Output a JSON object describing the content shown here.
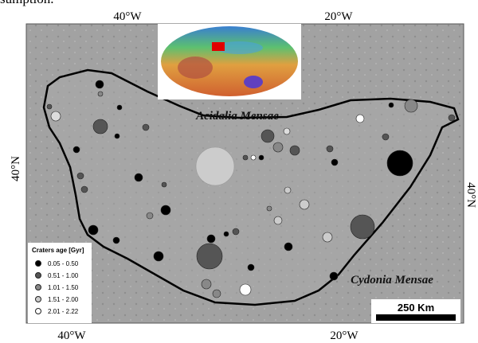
{
  "page_text": "sumption.",
  "map": {
    "axis_labels": {
      "top": [
        "40°W",
        "20°W"
      ],
      "bottom": [
        "40°W",
        "20°W"
      ],
      "left": "40°N",
      "right": "40°N"
    },
    "regions": [
      "Acidalia Mensae",
      "Cydonia Mensae"
    ],
    "legend": {
      "title": "Craters age [Gyr]",
      "items": [
        "0.05 - 0.50",
        "0.51 - 1.00",
        "1.01 - 1.50",
        "1.51 - 2.00",
        "2.01 - 2.22"
      ]
    },
    "scale_bar": "250 Km"
  }
}
